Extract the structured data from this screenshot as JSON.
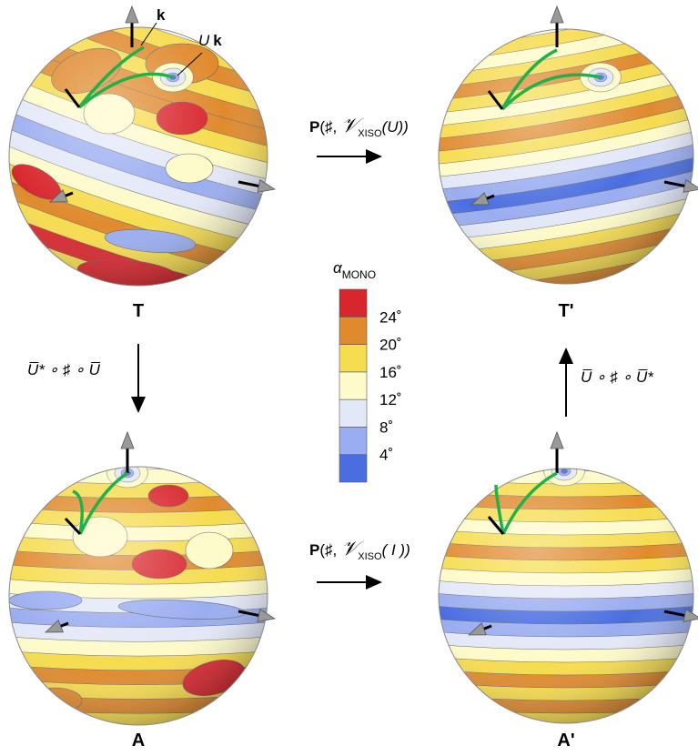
{
  "panels": [
    {
      "label": "T"
    },
    {
      "label": "T'"
    },
    {
      "label": "A"
    },
    {
      "label": "A'"
    }
  ],
  "vector_labels": {
    "k": "k",
    "uk_italic": "U",
    "uk_bold": "k"
  },
  "arrows": {
    "top": {
      "prefix": "P",
      "open": "(♯, ",
      "symbol": "𝒱",
      "sub": "XISO",
      "suffix": "(U))"
    },
    "bottom": {
      "prefix": "P",
      "open": "(♯, ",
      "symbol": "𝒱",
      "sub": "XISO",
      "suffix": "( I ))"
    },
    "left": {
      "label": "U̅* ∘ ♯ ∘ U̅"
    },
    "right": {
      "label": "U̅ ∘ ♯ ∘ U̅*"
    }
  },
  "colorbar": {
    "title": "α",
    "subscript": "MONO",
    "range": [
      0,
      28
    ],
    "colors": [
      "#4a6ee0",
      "#9aadf0",
      "#e3e8f8",
      "#fdfbc9",
      "#f6dc4f",
      "#e08a2e",
      "#d8262d"
    ],
    "ticks": [
      {
        "value": 4,
        "label": "4˚"
      },
      {
        "value": 8,
        "label": "8˚"
      },
      {
        "value": 12,
        "label": "12˚"
      },
      {
        "value": 16,
        "label": "16˚"
      },
      {
        "value": 20,
        "label": "20˚"
      },
      {
        "value": 24,
        "label": "24˚"
      }
    ]
  }
}
